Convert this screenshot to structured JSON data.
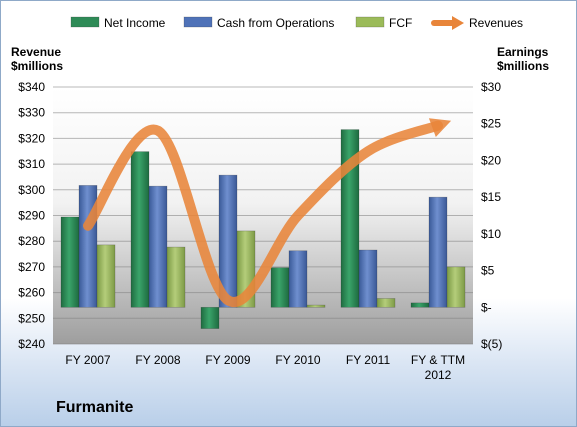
{
  "company": "Furmanite",
  "colors": {
    "net_income": "#2e8b57",
    "cash_from_operations": "#4f72b8",
    "fcf": "#9bbb59",
    "revenues": "#e8853a"
  },
  "chart_data": {
    "type": "bar",
    "categories": [
      "FY 2007",
      "FY 2008",
      "FY 2009",
      "FY 2010",
      "FY 2011",
      "FY & TTM 2012"
    ],
    "series": [
      {
        "name": "Net Income",
        "type": "bar",
        "axis": "right",
        "values": [
          12.3,
          21.2,
          -2.9,
          5.4,
          24.2,
          0.6
        ]
      },
      {
        "name": "Cash from Operations",
        "type": "bar",
        "axis": "right",
        "values": [
          16.6,
          16.5,
          18.0,
          7.7,
          7.8,
          15.0
        ]
      },
      {
        "name": "FCF",
        "type": "bar",
        "axis": "right",
        "values": [
          8.5,
          8.2,
          10.4,
          0.3,
          1.2,
          5.5
        ]
      },
      {
        "name": "Revenues",
        "type": "line",
        "axis": "left",
        "values": [
          286,
          323,
          257,
          290,
          315,
          325
        ]
      }
    ],
    "legend": {
      "position": "top",
      "entries": [
        "Net Income",
        "Cash from Operations",
        "FCF",
        "Revenues"
      ]
    },
    "left_axis": {
      "title_line1": "Revenue",
      "title_line2": "$millions",
      "range": [
        240,
        340
      ],
      "ticks": [
        "$340",
        "$330",
        "$320",
        "$310",
        "$300",
        "$290",
        "$280",
        "$270",
        "$260",
        "$250",
        "$240"
      ]
    },
    "right_axis": {
      "title_line1": "Earnings",
      "title_line2": "$millions",
      "range": [
        -5,
        30
      ],
      "ticks": [
        "$30",
        "$25",
        "$20",
        "$15",
        "$10",
        "$5",
        "$-",
        "$(5)"
      ]
    },
    "x_tick_labels": [
      [
        "FY 2007"
      ],
      [
        "FY 2008"
      ],
      [
        "FY 2009"
      ],
      [
        "FY 2010"
      ],
      [
        "FY 2011"
      ],
      [
        "FY & TTM",
        "2012"
      ]
    ],
    "grid": true
  }
}
